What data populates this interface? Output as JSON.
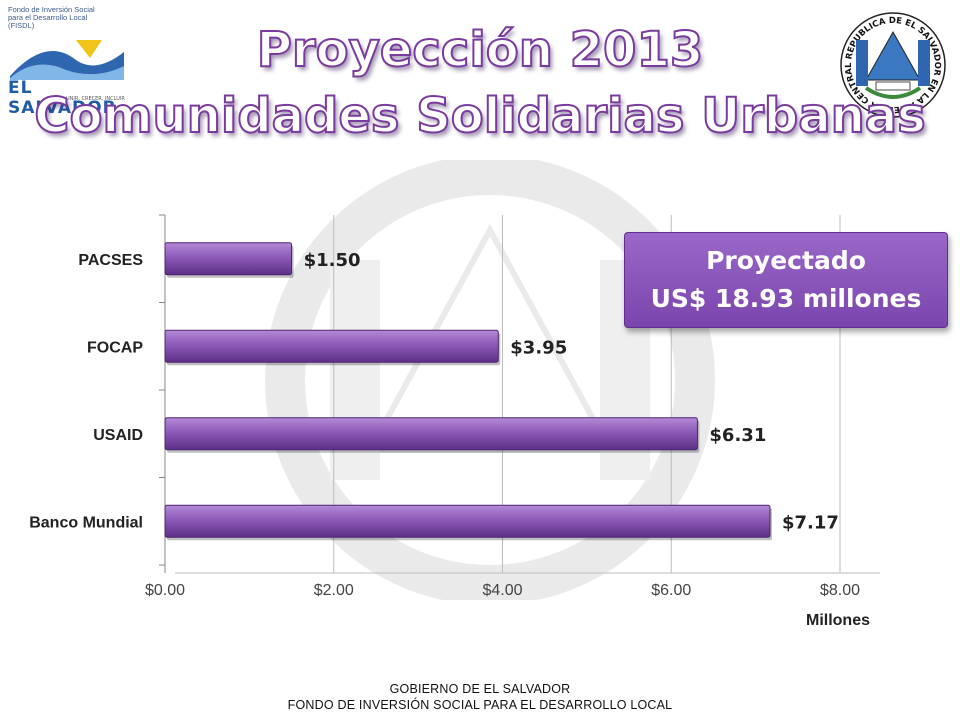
{
  "logo": {
    "small_text": "Fondo de Inversión Social para el Desarrollo Local (FISDL)",
    "main_text": "EL SALVADOR",
    "sub_text": "UNIR, CRECER, INCLUIR"
  },
  "seal": {
    "ring_text": "REPUBLICA DE EL SALVADOR EN LA AMERICA CENTRAL"
  },
  "title": {
    "line1": "Proyección 2013",
    "line2": "Comunidades Solidarias Urbanas"
  },
  "callout": {
    "line1": "Proyectado",
    "line2": "US$ 18.93 millones"
  },
  "footer": {
    "line1": "GOBIERNO DE EL SALVADOR",
    "line2": "FONDO DE INVERSIÓN SOCIAL PARA EL DESARROLLO LOCAL"
  },
  "colors": {
    "bar": "#8d5ab8",
    "bar_dark": "#5d2f86",
    "title_stroke": "#7a3b9e"
  },
  "chart_data": {
    "type": "bar",
    "orientation": "horizontal",
    "categories": [
      "PACSES",
      "FOCAP",
      "USAID",
      "Banco Mundial"
    ],
    "values": [
      1.5,
      3.95,
      6.31,
      7.17
    ],
    "data_labels": [
      "$1.50",
      "$3.95",
      "$6.31",
      "$7.17"
    ],
    "xlabel": "Millones",
    "ylabel": "",
    "xlim": [
      0,
      8
    ],
    "x_ticks": [
      0,
      2,
      4,
      6,
      8
    ],
    "x_tick_labels": [
      "$0.00",
      "$2.00",
      "$4.00",
      "$6.00",
      "$8.00"
    ],
    "grid": true
  }
}
